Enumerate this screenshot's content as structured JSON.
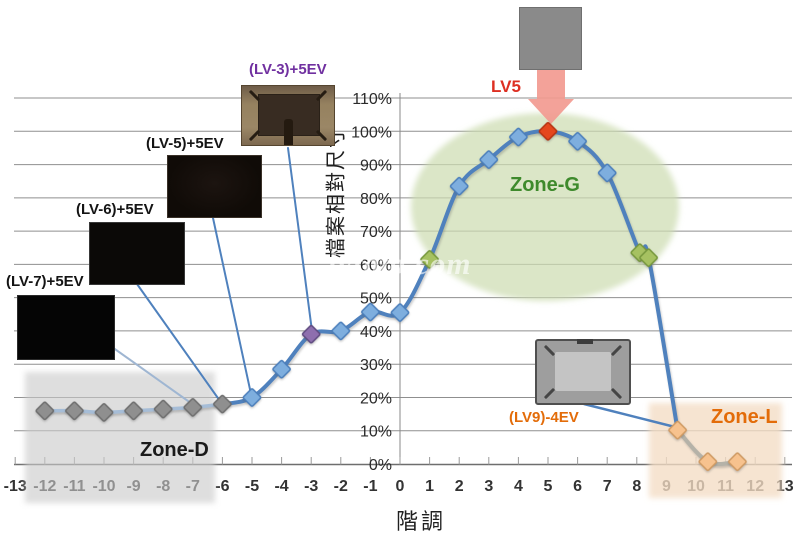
{
  "watermark": "lyfoto.com",
  "chart_data": {
    "type": "line",
    "title": "",
    "xlabel": "階調",
    "ylabel": "檔案相對尺寸",
    "xlim": [
      -13,
      13
    ],
    "ylim": [
      0,
      110
    ],
    "grid": "horizontal",
    "x_ticks": [
      -13,
      -12,
      -11,
      -10,
      -9,
      -8,
      -7,
      -6,
      -5,
      -4,
      -3,
      -2,
      -1,
      0,
      1,
      2,
      3,
      4,
      5,
      6,
      7,
      8,
      9,
      10,
      11,
      12,
      13
    ],
    "y_ticks": [
      "0%",
      "10%",
      "20%",
      "30%",
      "40%",
      "50%",
      "60%",
      "70%",
      "80%",
      "90%",
      "100%",
      "110%"
    ],
    "series": [
      {
        "name": "檔案相對尺寸 (%)",
        "points": [
          {
            "x": -12,
            "y": 16,
            "marker": "gray"
          },
          {
            "x": -11,
            "y": 16,
            "marker": "gray"
          },
          {
            "x": -10,
            "y": 15.5,
            "marker": "gray"
          },
          {
            "x": -9,
            "y": 16,
            "marker": "gray"
          },
          {
            "x": -8,
            "y": 16.5,
            "marker": "gray"
          },
          {
            "x": -7,
            "y": 17,
            "marker": "gray"
          },
          {
            "x": -6,
            "y": 18,
            "marker": "gray"
          },
          {
            "x": -5,
            "y": 20,
            "marker": "blue"
          },
          {
            "x": -4,
            "y": 28.5,
            "marker": "blue"
          },
          {
            "x": -3,
            "y": 39,
            "marker": "purple"
          },
          {
            "x": -2,
            "y": 40,
            "marker": "blue"
          },
          {
            "x": -1,
            "y": 45.7,
            "marker": "blue"
          },
          {
            "x": 0,
            "y": 45.5,
            "marker": "blue"
          },
          {
            "x": 1,
            "y": 61.5,
            "marker": "green"
          },
          {
            "x": 2,
            "y": 83.5,
            "marker": "blue"
          },
          {
            "x": 3,
            "y": 91.5,
            "marker": "blue"
          },
          {
            "x": 4,
            "y": 98.3,
            "marker": "blue"
          },
          {
            "x": 5,
            "y": 100,
            "marker": "red"
          },
          {
            "x": 6,
            "y": 97,
            "marker": "blue"
          },
          {
            "x": 7,
            "y": 87.5,
            "marker": "blue"
          },
          {
            "x": 8.1,
            "y": 63.5,
            "marker": "green"
          },
          {
            "x": 8.4,
            "y": 62,
            "marker": "green"
          },
          {
            "x": 9.38,
            "y": 10.2,
            "marker": "orange"
          },
          {
            "x": 10.4,
            "y": 0.7,
            "marker": "orange"
          },
          {
            "x": 11.4,
            "y": 0.7,
            "marker": "orange"
          }
        ]
      }
    ],
    "segments": [
      {
        "from_x": -12,
        "to_x": -6,
        "color": "#a6bdd7",
        "width": 3.5
      },
      {
        "from_x": -6,
        "to_x": 9.38,
        "color": "#4f81bd",
        "width": 4
      },
      {
        "from_x": 9.38,
        "to_x": 11.4,
        "color": "#b5b2a8",
        "width": 4
      }
    ],
    "marker_styles": {
      "gray": {
        "fill": "#8f8f8f",
        "stroke": "#6e6e6e"
      },
      "blue": {
        "fill": "#7eaede",
        "stroke": "#4a7ebb"
      },
      "purple": {
        "fill": "#8e6fae",
        "stroke": "#5f4b80"
      },
      "green": {
        "fill": "#a6c161",
        "stroke": "#76973c"
      },
      "red": {
        "fill": "#e5471d",
        "stroke": "#b63311"
      },
      "orange": {
        "fill": "#f7c28e",
        "stroke": "#cf9a63"
      }
    }
  },
  "zones": {
    "d": {
      "label": "Zone-D",
      "color": "#1a1a1a",
      "x_range": [
        -12.7,
        -6.3
      ]
    },
    "g": {
      "label": "Zone-G",
      "color": "#3e8a2c",
      "x_range": [
        0.5,
        9.2
      ]
    },
    "l": {
      "label": "Zone-L",
      "color": "#e36c09",
      "x_range": [
        8.4,
        12.9
      ]
    }
  },
  "callouts": {
    "lv7": {
      "label": "(LV-7)+5EV",
      "color": "#141414",
      "points_to_x": -7
    },
    "lv6": {
      "label": "(LV-6)+5EV",
      "color": "#141414",
      "points_to_x": -6
    },
    "lv5": {
      "label": "(LV-5)+5EV",
      "color": "#141414",
      "points_to_x": -5
    },
    "lv3": {
      "label": "(LV-3)+5EV",
      "color": "#7030a0",
      "points_to_x": -3
    },
    "lv5_peak": {
      "label": "LV5",
      "color": "#dd2f22",
      "points_to_x": 5
    },
    "lv9": {
      "label": "(LV9)-4EV",
      "color": "#e36c09",
      "points_to_x": 9.38
    }
  }
}
